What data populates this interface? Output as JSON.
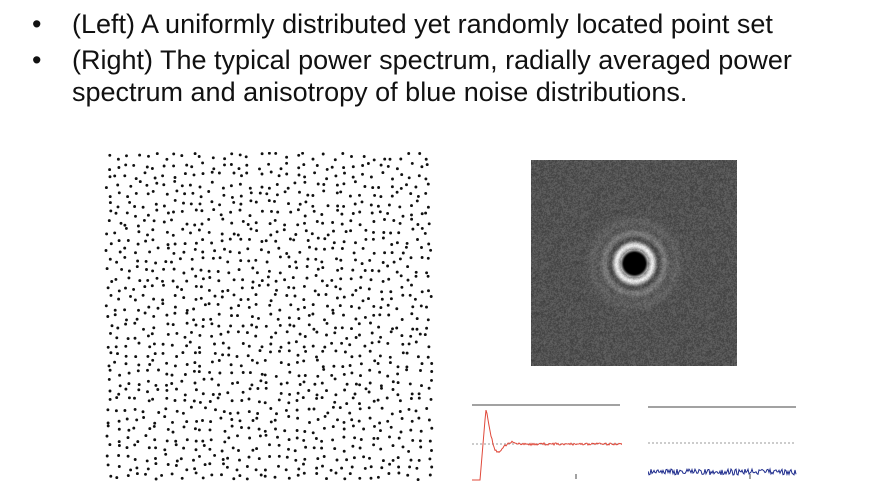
{
  "bullets": [
    {
      "text": "(Left) A uniformly distributed yet randomly located point set"
    },
    {
      "text": "(Right) The typical power spectrum, radially averaged power spectrum and anisotropy of blue noise distributions."
    }
  ],
  "icons": {
    "bullet": "bullet-dot"
  },
  "colors": {
    "text": "#111111",
    "points": "#111111",
    "spectrum_background": "#525252",
    "radial_curve": "#e0483a",
    "anisotropy_curve": "#1c2a8c",
    "reference_line": "#444444"
  }
}
